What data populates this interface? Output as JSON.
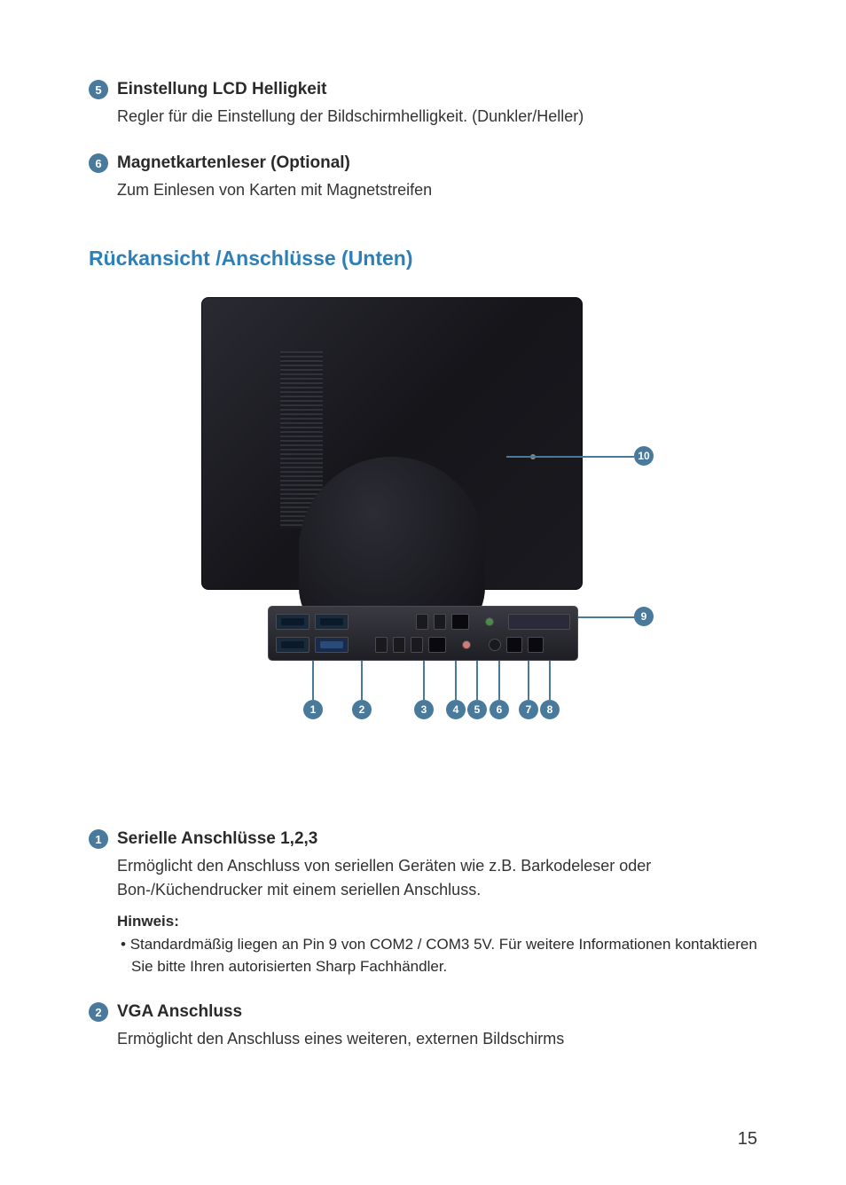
{
  "items_top": [
    {
      "num": "5",
      "title": "Einstellung LCD Helligkeit",
      "desc": "Regler für die Einstellung der Bildschirmhelligkeit. (Dunkler/Heller)"
    },
    {
      "num": "6",
      "title": "Magnetkartenleser (Optional)",
      "desc": "Zum Einlesen von Karten mit Magnetstreifen"
    }
  ],
  "section_heading": "Rückansicht /Anschlüsse (Unten)",
  "diagram": {
    "callouts_bottom": [
      "1",
      "2",
      "3",
      "4",
      "5",
      "6",
      "7",
      "8"
    ],
    "callouts_right": [
      "10",
      "9"
    ],
    "callout_color": "#4a7a9b",
    "monitor_bg": "#1a1a20",
    "panel_bg": "#2a2a30"
  },
  "items_bottom": [
    {
      "num": "1",
      "title": "Serielle Anschlüsse 1,2,3",
      "desc": "Ermöglicht den Anschluss von seriellen Geräten wie z.B. Barkodeleser oder Bon-/Küchendrucker mit einem seriellen Anschluss.",
      "hinweis_title": "Hinweis:",
      "hinweis_text": "Standardmäßig liegen an Pin 9 von COM2 / COM3 5V. Für weitere Informationen kontaktieren Sie bitte Ihren autorisierten Sharp Fachhändler."
    },
    {
      "num": "2",
      "title": "VGA Anschluss",
      "desc": "Ermöglicht den Anschluss eines weiteren, externen Bildschirms"
    }
  ],
  "page_number": "15"
}
